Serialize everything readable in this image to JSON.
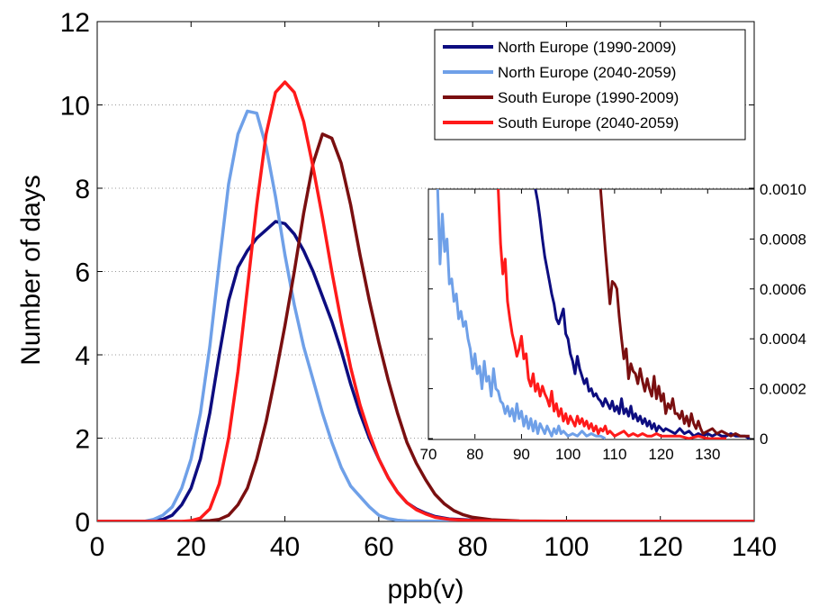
{
  "chart_data": [
    {
      "type": "line",
      "xlabel": "ppb(v)",
      "ylabel": "Number of days",
      "xlim": [
        0,
        140
      ],
      "ylim": [
        0,
        12
      ],
      "xticks": [
        0,
        20,
        40,
        60,
        80,
        100,
        120,
        140
      ],
      "yticks": [
        0,
        2,
        4,
        6,
        8,
        10,
        12
      ],
      "grid": "horizontal dotted",
      "legend_position": "top-right",
      "series": [
        {
          "name": "North Europe (1990-2009)",
          "color": "#0d0d80",
          "x": [
            0,
            10,
            14,
            16,
            18,
            20,
            22,
            24,
            26,
            28,
            30,
            32,
            34,
            36,
            38,
            40,
            42,
            44,
            46,
            48,
            50,
            52,
            54,
            56,
            58,
            60,
            62,
            64,
            66,
            68,
            70,
            72,
            75,
            80,
            85,
            90,
            100,
            110,
            120,
            140
          ],
          "y": [
            0,
            0,
            0.05,
            0.15,
            0.4,
            0.8,
            1.5,
            2.6,
            4.0,
            5.3,
            6.1,
            6.5,
            6.8,
            7.0,
            7.2,
            7.15,
            6.9,
            6.5,
            6.0,
            5.4,
            4.8,
            4.1,
            3.3,
            2.6,
            2.0,
            1.5,
            1.05,
            0.7,
            0.45,
            0.3,
            0.2,
            0.12,
            0.06,
            0.03,
            0.01,
            0.005,
            0.002,
            0.001,
            0.0005,
            0
          ]
        },
        {
          "name": "North Europe (2040-2059)",
          "color": "#6fa0e8",
          "x": [
            0,
            10,
            12,
            14,
            16,
            18,
            20,
            22,
            24,
            26,
            28,
            30,
            32,
            34,
            36,
            38,
            40,
            42,
            44,
            46,
            48,
            50,
            52,
            54,
            56,
            58,
            60,
            62,
            64,
            66,
            70,
            75,
            80,
            90,
            100,
            140
          ],
          "y": [
            0,
            0,
            0.05,
            0.15,
            0.35,
            0.8,
            1.5,
            2.6,
            4.2,
            6.2,
            8.1,
            9.3,
            9.85,
            9.8,
            9.0,
            7.8,
            6.4,
            5.2,
            4.2,
            3.4,
            2.6,
            1.9,
            1.3,
            0.85,
            0.6,
            0.35,
            0.15,
            0.07,
            0.03,
            0.01,
            0.005,
            0.002,
            0.001,
            0.0005,
            0.0001,
            0
          ]
        },
        {
          "name": "South Europe (1990-2009)",
          "color": "#7a0f10",
          "x": [
            0,
            20,
            24,
            26,
            28,
            30,
            32,
            34,
            36,
            38,
            40,
            42,
            44,
            46,
            48,
            50,
            52,
            54,
            56,
            58,
            60,
            62,
            64,
            66,
            68,
            70,
            72,
            74,
            76,
            78,
            80,
            84,
            90,
            100,
            110,
            120,
            140
          ],
          "y": [
            0,
            0,
            0.02,
            0.05,
            0.15,
            0.4,
            0.8,
            1.5,
            2.4,
            3.5,
            4.7,
            6.0,
            7.4,
            8.6,
            9.3,
            9.2,
            8.6,
            7.6,
            6.4,
            5.3,
            4.3,
            3.4,
            2.6,
            1.9,
            1.4,
            1.0,
            0.65,
            0.42,
            0.26,
            0.16,
            0.1,
            0.04,
            0.01,
            0.002,
            0.0008,
            0.0002,
            0
          ]
        },
        {
          "name": "South Europe (2040-2059)",
          "color": "#ff1a1a",
          "x": [
            0,
            18,
            20,
            22,
            24,
            26,
            28,
            30,
            32,
            34,
            36,
            38,
            40,
            42,
            44,
            46,
            48,
            50,
            52,
            54,
            56,
            58,
            60,
            62,
            64,
            66,
            68,
            70,
            72,
            75,
            80,
            90,
            100,
            140
          ],
          "y": [
            0,
            0,
            0.02,
            0.08,
            0.3,
            0.9,
            2.0,
            3.6,
            5.6,
            7.6,
            9.3,
            10.3,
            10.55,
            10.3,
            9.6,
            8.5,
            7.3,
            6.0,
            4.8,
            3.7,
            2.8,
            2.1,
            1.5,
            1.05,
            0.7,
            0.45,
            0.28,
            0.18,
            0.1,
            0.05,
            0.02,
            0.004,
            0.001,
            0
          ]
        }
      ]
    },
    {
      "type": "line",
      "xlim": [
        70,
        140
      ],
      "ylim": [
        0,
        0.001
      ],
      "xticks": [
        70,
        80,
        90,
        100,
        110,
        120,
        130
      ],
      "yticks": [
        "0",
        "0.0002",
        "0.0004",
        "0.0006",
        "0.0008",
        "0.0010"
      ],
      "series": [
        {
          "color": "#0d0d80",
          "x": [
            93,
            93.5,
            94,
            94.5,
            95,
            95.5,
            96,
            96.5,
            97,
            97.5,
            98,
            98.5,
            99,
            99.5,
            100,
            100.5,
            101,
            101.5,
            102,
            102.5,
            103,
            103.5,
            104,
            104.5,
            105,
            105.5,
            106,
            106.5,
            107,
            107.5,
            108,
            108.5,
            109,
            109.5,
            110,
            110.5,
            111,
            111.5,
            112,
            112.5,
            113,
            113.5,
            114,
            114.5,
            115,
            115.5,
            116,
            116.5,
            117,
            117.5,
            118,
            118.5,
            119,
            119.5,
            120,
            120.5,
            121,
            122,
            123,
            124,
            125,
            126,
            127,
            128,
            129,
            130,
            131,
            132,
            133,
            134,
            135,
            136,
            137,
            138,
            139
          ],
          "y": [
            0.001,
            0.00095,
            0.00088,
            0.0008,
            0.00073,
            0.00068,
            0.00063,
            0.00058,
            0.00054,
            0.00048,
            0.00046,
            0.00049,
            0.00052,
            0.00042,
            0.0004,
            0.00034,
            0.00031,
            0.00026,
            0.00033,
            0.00028,
            0.00025,
            0.00022,
            0.00024,
            0.00019,
            0.0002,
            0.00017,
            0.00018,
            0.00016,
            0.00015,
            0.00013,
            0.00016,
            0.00014,
            0.00012,
            0.00015,
            0.00011,
            0.00013,
            0.0001,
            0.00016,
            0.0001,
            0.00012,
            9e-05,
            0.00013,
            8e-05,
            0.0001,
            7e-05,
            9e-05,
            6e-05,
            8e-05,
            5e-05,
            7e-05,
            4e-05,
            6e-05,
            3e-05,
            5e-05,
            4e-05,
            3e-05,
            4e-05,
            3e-05,
            2e-05,
            4e-05,
            2e-05,
            3e-05,
            1e-05,
            2e-05,
            1e-05,
            2e-05,
            1e-05,
            2e-05,
            1e-05,
            1e-05,
            2e-05,
            1e-05,
            1e-05,
            1e-05,
            0
          ]
        },
        {
          "color": "#6fa0e8",
          "x": [
            72,
            72.5,
            73,
            73.5,
            74,
            74.5,
            75,
            75.5,
            76,
            76.5,
            77,
            77.5,
            78,
            78.5,
            79,
            79.5,
            80,
            80.5,
            81,
            81.5,
            82,
            82.5,
            83,
            83.5,
            84,
            84.5,
            85,
            85.5,
            86,
            86.5,
            87,
            87.5,
            88,
            88.5,
            89,
            89.5,
            90,
            90.5,
            91,
            91.5,
            92,
            92.5,
            93,
            93.5,
            94,
            94.5,
            95,
            95.5,
            96,
            96.5,
            97,
            97.5,
            98,
            98.5,
            99,
            100,
            101,
            102,
            103,
            104,
            105,
            106,
            107,
            108
          ],
          "y": [
            0.001,
            0.0007,
            0.0009,
            0.00075,
            0.0008,
            0.00062,
            0.00064,
            0.00055,
            0.00058,
            0.00048,
            0.00051,
            0.00045,
            0.00047,
            0.0004,
            0.00036,
            0.00028,
            0.00034,
            0.00026,
            0.00029,
            0.0002,
            0.00031,
            0.00023,
            0.00025,
            0.00017,
            0.00028,
            0.0002,
            0.00019,
            0.00015,
            0.00014,
            0.0001,
            0.00013,
            9e-05,
            0.00012,
            7e-05,
            0.00014,
            8e-05,
            0.00011,
            5e-05,
            9e-05,
            4e-05,
            8e-05,
            3e-05,
            7e-05,
            2e-05,
            6e-05,
            4e-05,
            2e-05,
            5e-05,
            3e-05,
            1e-05,
            4e-05,
            2e-05,
            5e-05,
            2e-05,
            3e-05,
            1e-05,
            2e-05,
            1e-05,
            3e-05,
            1e-05,
            2e-05,
            1e-05,
            1e-05,
            0
          ]
        },
        {
          "color": "#7a0f10",
          "x": [
            107,
            107.5,
            108,
            108.5,
            109,
            109.5,
            110,
            110.5,
            111,
            111.5,
            112,
            112.5,
            113,
            113.5,
            114,
            114.5,
            115,
            115.5,
            116,
            116.5,
            117,
            117.5,
            118,
            118.5,
            119,
            119.5,
            120,
            120.5,
            121,
            121.5,
            122,
            122.5,
            123,
            123.5,
            124,
            124.5,
            125,
            125.5,
            126,
            126.5,
            127,
            127.5,
            128,
            128.5,
            129,
            130,
            131,
            132,
            133,
            134,
            135,
            136,
            137,
            138,
            139
          ],
          "y": [
            0.001,
            0.00088,
            0.00076,
            0.00065,
            0.00054,
            0.00063,
            0.00062,
            0.0006,
            0.00049,
            0.0004,
            0.00032,
            0.00036,
            0.00024,
            0.0003,
            0.00027,
            0.00026,
            0.00022,
            0.00028,
            0.00023,
            0.00019,
            0.00024,
            0.0002,
            0.00017,
            0.00025,
            0.00016,
            0.00021,
            0.00015,
            0.00018,
            0.0001,
            0.00014,
            0.00012,
            0.00016,
            0.0001,
            0.0001,
            8e-05,
            0.00011,
            6e-05,
            9e-05,
            5e-05,
            0.0001,
            6e-05,
            4e-05,
            7e-05,
            4e-05,
            2e-05,
            3e-05,
            4e-05,
            2e-05,
            3e-05,
            2e-05,
            1e-05,
            2e-05,
            1e-05,
            1e-05,
            1e-05
          ]
        },
        {
          "color": "#ff1a1a",
          "x": [
            85,
            85.5,
            86,
            86.5,
            87,
            87.5,
            88,
            88.5,
            89,
            89.5,
            90,
            90.5,
            91,
            91.5,
            92,
            92.5,
            93,
            93.5,
            94,
            94.5,
            95,
            95.5,
            96,
            96.5,
            97,
            97.5,
            98,
            98.5,
            99,
            99.5,
            100,
            100.5,
            101,
            101.5,
            102,
            102.5,
            103,
            103.5,
            104,
            104.5,
            105,
            105.5,
            106,
            106.5,
            107,
            107.5,
            108,
            108.5,
            109,
            110,
            111,
            112,
            113,
            114,
            115,
            116,
            117,
            118,
            119,
            120,
            122,
            124,
            126,
            128,
            130,
            132,
            134
          ],
          "y": [
            0.001,
            0.00078,
            0.00066,
            0.00072,
            0.00055,
            0.00048,
            0.00042,
            0.00038,
            0.00033,
            0.00036,
            0.00041,
            0.00032,
            0.00034,
            0.00024,
            0.00021,
            0.00026,
            0.00019,
            0.00022,
            0.00017,
            0.00021,
            0.00018,
            0.00016,
            0.00013,
            0.00019,
            0.00011,
            0.00014,
            9e-05,
            0.00012,
            7e-05,
            0.0001,
            6e-05,
            9e-05,
            7e-05,
            5e-05,
            9e-05,
            6e-05,
            8e-05,
            5e-05,
            7e-05,
            4e-05,
            6e-05,
            3e-05,
            5e-05,
            2e-05,
            4e-05,
            3e-05,
            5e-05,
            2e-05,
            3e-05,
            1e-05,
            2e-05,
            3e-05,
            1e-05,
            2e-05,
            1e-05,
            2e-05,
            1e-05,
            1e-05,
            2e-05,
            1e-05,
            1e-05,
            1e-05,
            0,
            1e-05,
            0,
            0,
            0
          ]
        }
      ]
    }
  ]
}
